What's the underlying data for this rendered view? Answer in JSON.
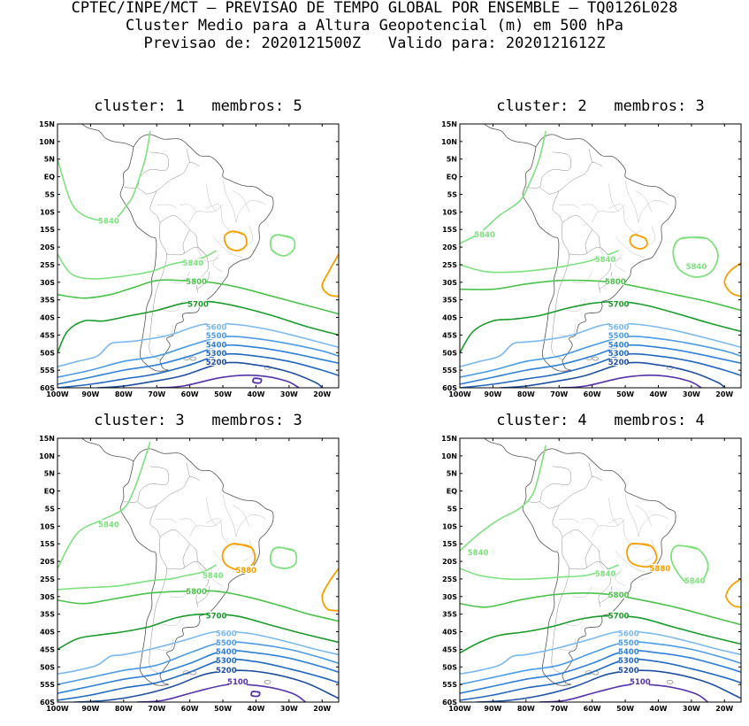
{
  "header": {
    "line1": "CPTEC/INPE/MCT – PREVISAO DE TEMPO GLOBAL POR ENSEMBLE – TQ0126L028",
    "line2": "Cluster Medio para a Altura Geopotencial (m) em 500 hPa",
    "line3": "Previsao de: 2020121500Z   Valido para: 2020121612Z"
  },
  "axes": {
    "lat_labels": [
      "15N",
      "10N",
      "5N",
      "EQ",
      "5S",
      "10S",
      "15S",
      "20S",
      "25S",
      "30S",
      "35S",
      "40S",
      "45S",
      "50S",
      "55S",
      "60S"
    ],
    "lon_labels": [
      "100W",
      "90W",
      "80W",
      "70W",
      "60W",
      "50W",
      "40W",
      "30W",
      "20W"
    ]
  },
  "colors": {
    "5100": "#5533aa",
    "5200": "#1f4fa0",
    "5300": "#2268c0",
    "5400": "#2f80d8",
    "5500": "#4c9be6",
    "5600": "#7ab8ee",
    "5700": "#1a9a2a",
    "5800": "#4cc24c",
    "5840": "#7fe07f",
    "5880": "#f5a000"
  },
  "panels": [
    {
      "title": "cluster: 1   membros: 5",
      "labels": [
        "5840",
        "5840",
        "5800",
        "5700",
        "5600",
        "5500",
        "5400",
        "5300",
        "5200"
      ]
    },
    {
      "title": "cluster: 2   membros: 3",
      "labels": [
        "5840",
        "5840",
        "5840",
        "5800",
        "5700",
        "5600",
        "5500",
        "5400",
        "5300",
        "5200"
      ]
    },
    {
      "title": "cluster: 3   membros: 3",
      "labels": [
        "5840",
        "5840",
        "5880",
        "5800",
        "5700",
        "5600",
        "5500",
        "5400",
        "5300",
        "5200",
        "5100"
      ]
    },
    {
      "title": "cluster: 4   membros: 4",
      "labels": [
        "5840",
        "5840",
        "5880",
        "5840",
        "5800",
        "5700",
        "5600",
        "5500",
        "5400",
        "5300",
        "5200",
        "5100"
      ]
    }
  ]
}
